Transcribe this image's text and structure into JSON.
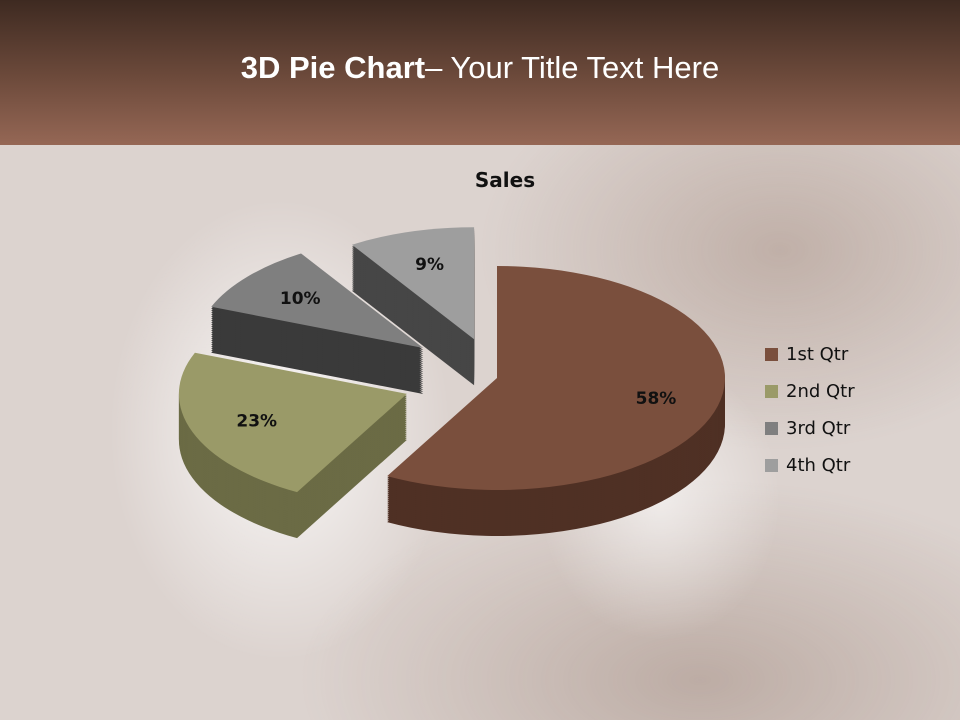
{
  "slide": {
    "title_bold": "3D Pie Chart",
    "title_rest": "– Your Title Text Here"
  },
  "chart_data": {
    "type": "pie",
    "variant": "3d-exploded",
    "title": "Sales",
    "categories": [
      "1st Qtr",
      "2nd Qtr",
      "3rd Qtr",
      "4th Qtr"
    ],
    "values": [
      58,
      23,
      10,
      9
    ],
    "data_labels": [
      "58%",
      "23%",
      "10%",
      "9%"
    ],
    "colors": [
      "#7a4f3d",
      "#9a9a68",
      "#7f7f7f",
      "#9e9e9e"
    ],
    "side_colors": [
      "#4f3024",
      "#6b6b45",
      "#3a3a3a",
      "#464646"
    ],
    "legend_position": "right"
  }
}
